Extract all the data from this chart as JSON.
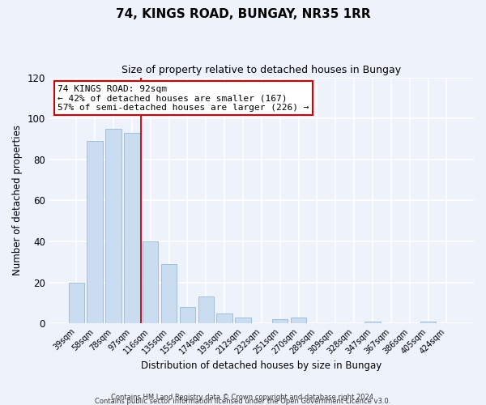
{
  "title": "74, KINGS ROAD, BUNGAY, NR35 1RR",
  "subtitle": "Size of property relative to detached houses in Bungay",
  "xlabel": "Distribution of detached houses by size in Bungay",
  "ylabel": "Number of detached properties",
  "bar_labels": [
    "39sqm",
    "58sqm",
    "78sqm",
    "97sqm",
    "116sqm",
    "135sqm",
    "155sqm",
    "174sqm",
    "193sqm",
    "212sqm",
    "232sqm",
    "251sqm",
    "270sqm",
    "289sqm",
    "309sqm",
    "328sqm",
    "347sqm",
    "367sqm",
    "386sqm",
    "405sqm",
    "424sqm"
  ],
  "bar_values": [
    20,
    89,
    95,
    93,
    40,
    29,
    8,
    13,
    5,
    3,
    0,
    2,
    3,
    0,
    0,
    0,
    1,
    0,
    0,
    1,
    0
  ],
  "bar_color": "#c9dcf0",
  "bar_edge_color": "#9ab8d8",
  "vline_color": "#cc0000",
  "annotation_title": "74 KINGS ROAD: 92sqm",
  "annotation_line1": "← 42% of detached houses are smaller (167)",
  "annotation_line2": "57% of semi-detached houses are larger (226) →",
  "annotation_box_color": "#ffffff",
  "annotation_box_edge": "#cc0000",
  "ylim": [
    0,
    120
  ],
  "yticks": [
    0,
    20,
    40,
    60,
    80,
    100,
    120
  ],
  "footer1": "Contains HM Land Registry data © Crown copyright and database right 2024.",
  "footer2": "Contains public sector information licensed under the Open Government Licence v3.0.",
  "background_color": "#eef2fa"
}
